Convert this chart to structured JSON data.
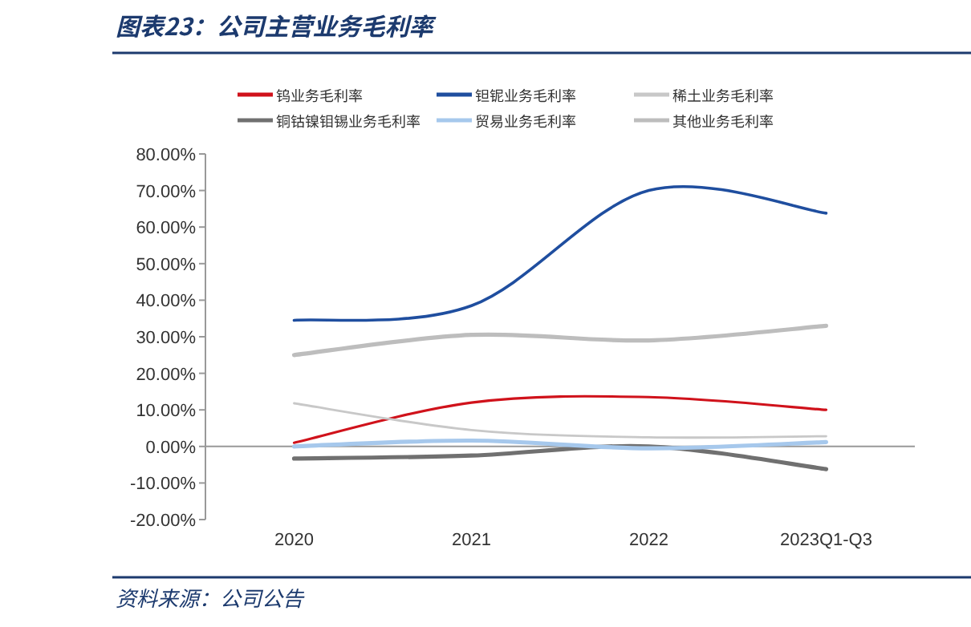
{
  "chart_data": {
    "type": "line",
    "title": "图表23：公司主营业务毛利率",
    "annotations": [
      "资料来源：公司公告"
    ],
    "categories": [
      "2020",
      "2021",
      "2022",
      "2023Q1-Q3"
    ],
    "ylim": [
      -20,
      80
    ],
    "yticks": [
      {
        "value": -20,
        "label": "-20.00%"
      },
      {
        "value": -10,
        "label": "-10.00%"
      },
      {
        "value": 0,
        "label": "0.00%"
      },
      {
        "value": 10,
        "label": "10.00%"
      },
      {
        "value": 20,
        "label": "20.00%"
      },
      {
        "value": 30,
        "label": "30.00%"
      },
      {
        "value": 40,
        "label": "40.00%"
      },
      {
        "value": 50,
        "label": "50.00%"
      },
      {
        "value": 60,
        "label": "60.00%"
      },
      {
        "value": 70,
        "label": "70.00%"
      },
      {
        "value": 80,
        "label": "80.00%"
      }
    ],
    "legend": "top",
    "marker": "none",
    "line_style": "solid",
    "series": [
      {
        "name": "钨业务毛利率",
        "color": "#d0121b",
        "values": [
          1.0,
          12.0,
          13.5,
          10.0
        ]
      },
      {
        "name": "钽铌业务毛利率",
        "color": "#1f4e9f",
        "values": [
          34.5,
          38.5,
          70.0,
          63.8
        ]
      },
      {
        "name": "稀土业务毛利率",
        "color": "#c8c8c8",
        "values": [
          11.8,
          4.5,
          2.5,
          2.8
        ]
      },
      {
        "name": "铜钴镍钼锡业务毛利率",
        "color": "#707070",
        "values": [
          -3.3,
          -2.5,
          0.0,
          -6.2
        ]
      },
      {
        "name": "贸易业务毛利率",
        "color": "#a6c8ec",
        "values": [
          0.0,
          1.6,
          -0.5,
          1.2
        ]
      },
      {
        "name": "其他业务毛利率",
        "color": "#bdbdbd",
        "values": [
          25.0,
          30.5,
          29.0,
          33.0
        ]
      }
    ]
  }
}
